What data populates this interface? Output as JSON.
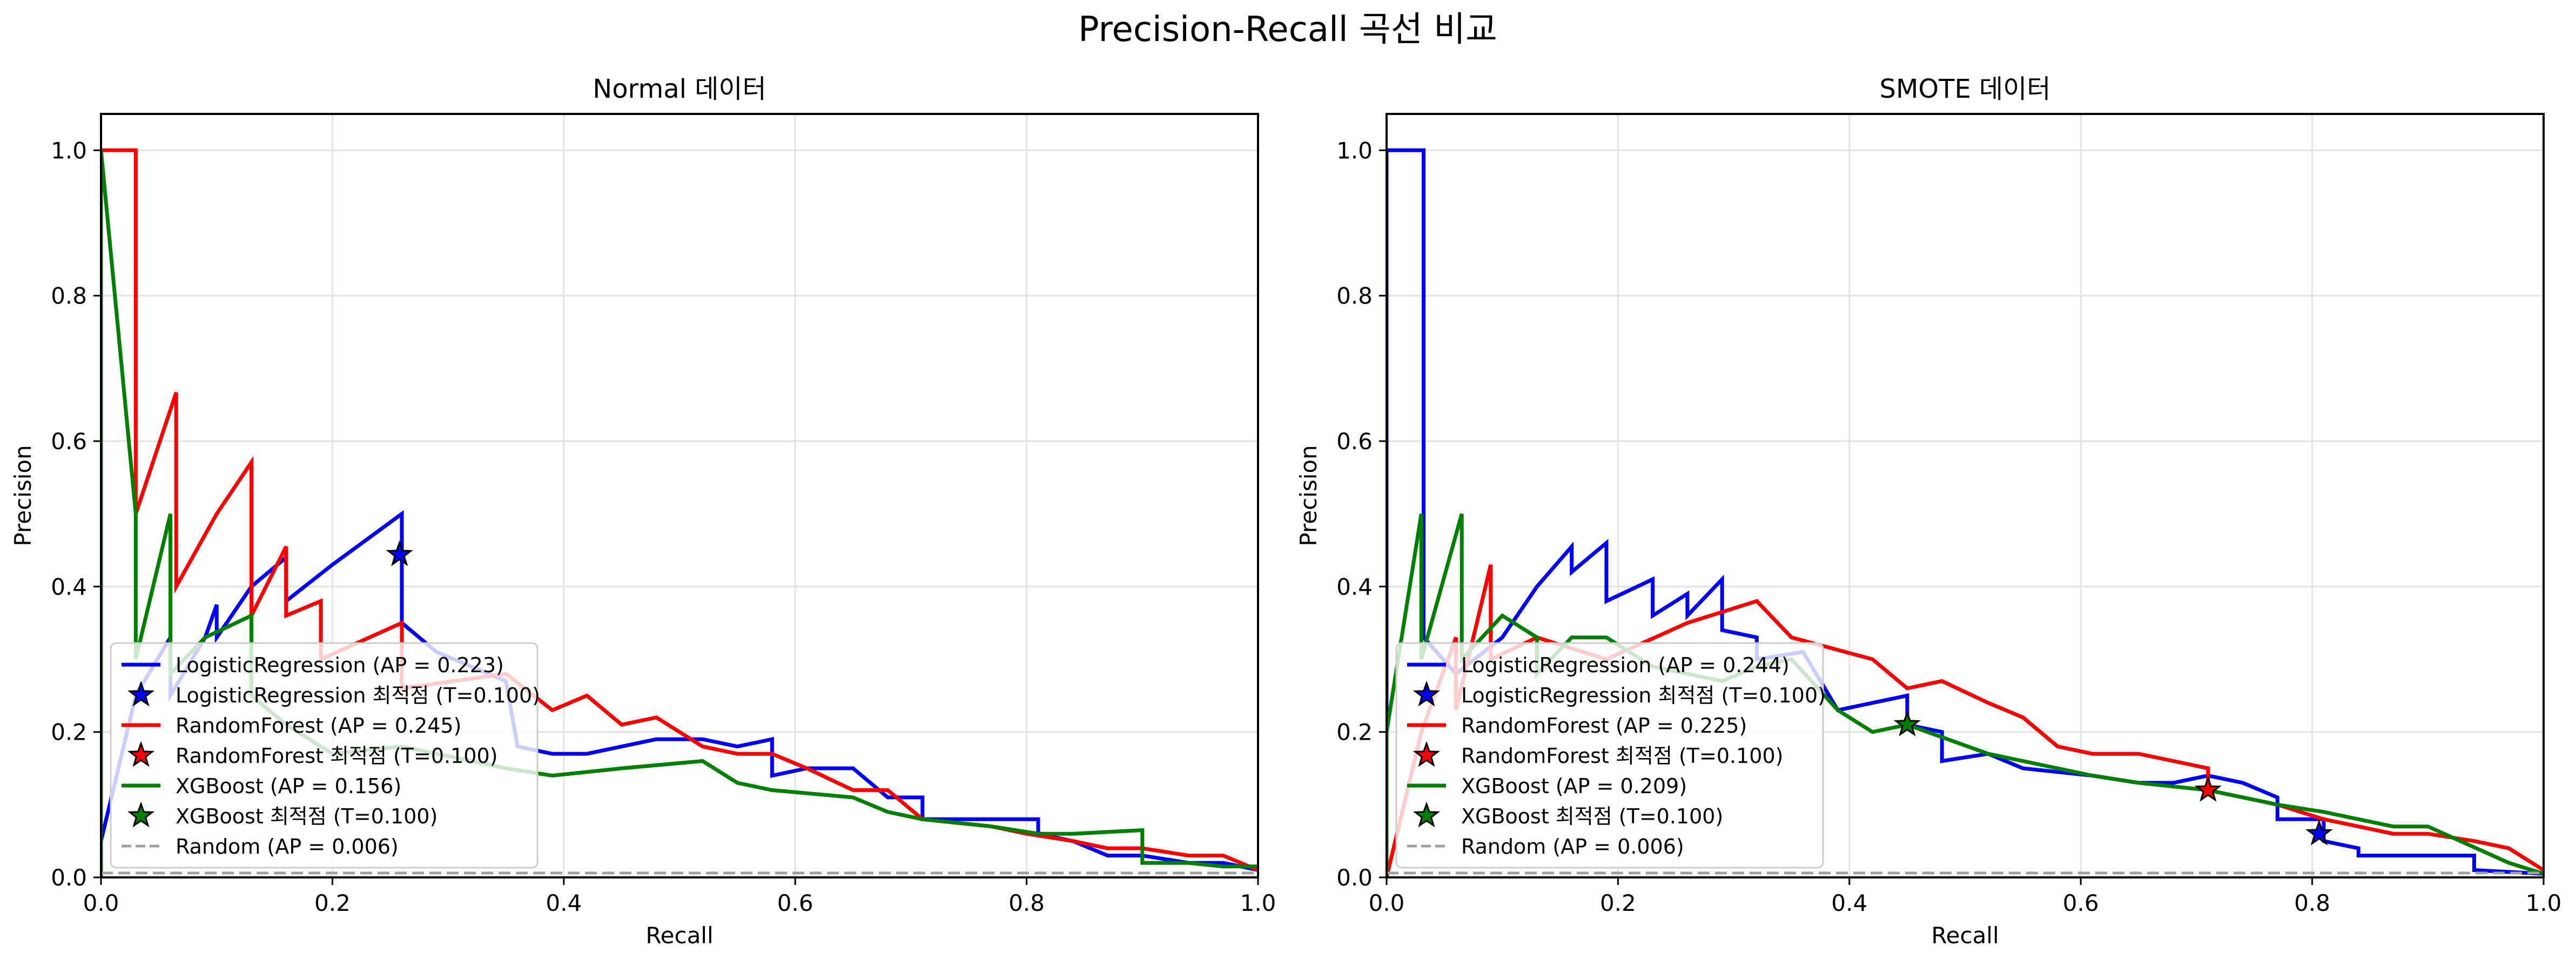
{
  "figure": {
    "title": "Precision-Recall 곡선 비교"
  },
  "chart_data": [
    {
      "type": "line",
      "title": "Normal 데이터",
      "xlabel": "Recall",
      "ylabel": "Precision",
      "xlim": [
        0,
        1
      ],
      "ylim": [
        0,
        1.05
      ],
      "xticks": [
        0.0,
        0.2,
        0.4,
        0.6,
        0.8,
        1.0
      ],
      "yticks": [
        0.0,
        0.2,
        0.4,
        0.6,
        0.8,
        1.0
      ],
      "grid": true,
      "legend_position": "lower left",
      "series": [
        {
          "name": "LogisticRegression (AP = 0.223)",
          "color": "#0000ff",
          "kind": "step",
          "points": [
            [
              0,
              1.0
            ],
            [
              0,
              0.05
            ],
            [
              0.03,
              0.25
            ],
            [
              0.06,
              0.33
            ],
            [
              0.06,
              0.25
            ],
            [
              0.09,
              0.33
            ],
            [
              0.1,
              0.375
            ],
            [
              0.1,
              0.33
            ],
            [
              0.13,
              0.4
            ],
            [
              0.16,
              0.44
            ],
            [
              0.16,
              0.38
            ],
            [
              0.2,
              0.43
            ],
            [
              0.26,
              0.5
            ],
            [
              0.26,
              0.35
            ],
            [
              0.29,
              0.31
            ],
            [
              0.32,
              0.29
            ],
            [
              0.35,
              0.27
            ],
            [
              0.36,
              0.18
            ],
            [
              0.39,
              0.17
            ],
            [
              0.42,
              0.17
            ],
            [
              0.45,
              0.18
            ],
            [
              0.48,
              0.19
            ],
            [
              0.52,
              0.19
            ],
            [
              0.55,
              0.18
            ],
            [
              0.58,
              0.19
            ],
            [
              0.58,
              0.14
            ],
            [
              0.61,
              0.15
            ],
            [
              0.65,
              0.15
            ],
            [
              0.68,
              0.11
            ],
            [
              0.71,
              0.11
            ],
            [
              0.71,
              0.08
            ],
            [
              0.77,
              0.08
            ],
            [
              0.81,
              0.08
            ],
            [
              0.81,
              0.06
            ],
            [
              0.84,
              0.05
            ],
            [
              0.87,
              0.03
            ],
            [
              0.9,
              0.03
            ],
            [
              0.94,
              0.02
            ],
            [
              0.97,
              0.02
            ],
            [
              1.0,
              0.01
            ]
          ]
        },
        {
          "name": "LogisticRegression 최적점 (T=0.100)",
          "color": "#0000ff",
          "kind": "marker",
          "points": [
            [
              0.258,
              0.444
            ]
          ]
        },
        {
          "name": "RandomForest (AP = 0.245)",
          "color": "#ff0000",
          "kind": "step",
          "points": [
            [
              0,
              1.0
            ],
            [
              0.03,
              1.0
            ],
            [
              0.03,
              0.5
            ],
            [
              0.065,
              0.667
            ],
            [
              0.065,
              0.4
            ],
            [
              0.1,
              0.5
            ],
            [
              0.13,
              0.571
            ],
            [
              0.13,
              0.36
            ],
            [
              0.16,
              0.455
            ],
            [
              0.16,
              0.36
            ],
            [
              0.19,
              0.38
            ],
            [
              0.19,
              0.3
            ],
            [
              0.26,
              0.35
            ],
            [
              0.26,
              0.26
            ],
            [
              0.35,
              0.28
            ],
            [
              0.39,
              0.23
            ],
            [
              0.42,
              0.25
            ],
            [
              0.45,
              0.21
            ],
            [
              0.48,
              0.22
            ],
            [
              0.52,
              0.18
            ],
            [
              0.55,
              0.17
            ],
            [
              0.58,
              0.17
            ],
            [
              0.61,
              0.15
            ],
            [
              0.65,
              0.12
            ],
            [
              0.68,
              0.12
            ],
            [
              0.71,
              0.08
            ],
            [
              0.77,
              0.07
            ],
            [
              0.8,
              0.06
            ],
            [
              0.84,
              0.05
            ],
            [
              0.87,
              0.04
            ],
            [
              0.9,
              0.04
            ],
            [
              0.94,
              0.03
            ],
            [
              0.97,
              0.03
            ],
            [
              1.0,
              0.01
            ]
          ]
        },
        {
          "name": "RandomForest 최적점 (T=0.100)",
          "color": "#ff0000",
          "kind": "marker",
          "points": []
        },
        {
          "name": "XGBoost (AP = 0.156)",
          "color": "#008000",
          "kind": "step",
          "points": [
            [
              0,
              0.0
            ],
            [
              0,
              1.0
            ],
            [
              0.03,
              0.5
            ],
            [
              0.03,
              0.3
            ],
            [
              0.06,
              0.5
            ],
            [
              0.06,
              0.28
            ],
            [
              0.09,
              0.33
            ],
            [
              0.13,
              0.36
            ],
            [
              0.13,
              0.25
            ],
            [
              0.16,
              0.21
            ],
            [
              0.2,
              0.17
            ],
            [
              0.26,
              0.18
            ],
            [
              0.35,
              0.15
            ],
            [
              0.39,
              0.14
            ],
            [
              0.45,
              0.15
            ],
            [
              0.52,
              0.16
            ],
            [
              0.55,
              0.13
            ],
            [
              0.58,
              0.12
            ],
            [
              0.65,
              0.11
            ],
            [
              0.68,
              0.09
            ],
            [
              0.71,
              0.08
            ],
            [
              0.77,
              0.07
            ],
            [
              0.81,
              0.06
            ],
            [
              0.84,
              0.06
            ],
            [
              0.9,
              0.065
            ],
            [
              0.9,
              0.02
            ],
            [
              0.94,
              0.02
            ],
            [
              0.97,
              0.015
            ],
            [
              1.0,
              0.015
            ]
          ]
        },
        {
          "name": "XGBoost 최적점 (T=0.100)",
          "color": "#008000",
          "kind": "marker",
          "points": []
        },
        {
          "name": "Random (AP = 0.006)",
          "color": "#a0a0a0",
          "kind": "dashed",
          "points": [
            [
              0,
              0.006
            ],
            [
              1,
              0.006
            ]
          ]
        }
      ]
    },
    {
      "type": "line",
      "title": "SMOTE 데이터",
      "xlabel": "Recall",
      "ylabel": "Precision",
      "xlim": [
        0,
        1
      ],
      "ylim": [
        0,
        1.05
      ],
      "xticks": [
        0.0,
        0.2,
        0.4,
        0.6,
        0.8,
        1.0
      ],
      "yticks": [
        0.0,
        0.2,
        0.4,
        0.6,
        0.8,
        1.0
      ],
      "grid": true,
      "legend_position": "lower left",
      "series": [
        {
          "name": "LogisticRegression (AP = 0.244)",
          "color": "#0000ff",
          "kind": "step",
          "points": [
            [
              0,
              0.0
            ],
            [
              0,
              1.0
            ],
            [
              0.032,
              1.0
            ],
            [
              0.032,
              0.33
            ],
            [
              0.06,
              0.28
            ],
            [
              0.1,
              0.33
            ],
            [
              0.13,
              0.4
            ],
            [
              0.16,
              0.455
            ],
            [
              0.16,
              0.42
            ],
            [
              0.19,
              0.46
            ],
            [
              0.19,
              0.38
            ],
            [
              0.23,
              0.41
            ],
            [
              0.23,
              0.36
            ],
            [
              0.26,
              0.39
            ],
            [
              0.26,
              0.36
            ],
            [
              0.29,
              0.41
            ],
            [
              0.29,
              0.34
            ],
            [
              0.32,
              0.33
            ],
            [
              0.32,
              0.3
            ],
            [
              0.36,
              0.31
            ],
            [
              0.39,
              0.23
            ],
            [
              0.42,
              0.24
            ],
            [
              0.45,
              0.25
            ],
            [
              0.45,
              0.21
            ],
            [
              0.48,
              0.2
            ],
            [
              0.48,
              0.16
            ],
            [
              0.52,
              0.17
            ],
            [
              0.55,
              0.15
            ],
            [
              0.61,
              0.14
            ],
            [
              0.65,
              0.13
            ],
            [
              0.68,
              0.13
            ],
            [
              0.71,
              0.14
            ],
            [
              0.74,
              0.13
            ],
            [
              0.77,
              0.11
            ],
            [
              0.77,
              0.08
            ],
            [
              0.81,
              0.08
            ],
            [
              0.81,
              0.05
            ],
            [
              0.84,
              0.04
            ],
            [
              0.84,
              0.03
            ],
            [
              0.9,
              0.03
            ],
            [
              0.94,
              0.03
            ],
            [
              0.94,
              0.01
            ],
            [
              1.0,
              0.005
            ]
          ]
        },
        {
          "name": "LogisticRegression 최적점 (T=0.100)",
          "color": "#0000ff",
          "kind": "marker",
          "points": [
            [
              0.806,
              0.06
            ]
          ]
        },
        {
          "name": "RandomForest (AP = 0.225)",
          "color": "#ff0000",
          "kind": "step",
          "points": [
            [
              0,
              0.0
            ],
            [
              0.03,
              0.2
            ],
            [
              0.06,
              0.33
            ],
            [
              0.06,
              0.23
            ],
            [
              0.09,
              0.43
            ],
            [
              0.09,
              0.3
            ],
            [
              0.13,
              0.33
            ],
            [
              0.19,
              0.3
            ],
            [
              0.26,
              0.35
            ],
            [
              0.32,
              0.38
            ],
            [
              0.35,
              0.33
            ],
            [
              0.42,
              0.3
            ],
            [
              0.45,
              0.26
            ],
            [
              0.48,
              0.27
            ],
            [
              0.52,
              0.24
            ],
            [
              0.55,
              0.22
            ],
            [
              0.58,
              0.18
            ],
            [
              0.61,
              0.17
            ],
            [
              0.65,
              0.17
            ],
            [
              0.68,
              0.16
            ],
            [
              0.71,
              0.15
            ],
            [
              0.71,
              0.12
            ],
            [
              0.77,
              0.1
            ],
            [
              0.81,
              0.08
            ],
            [
              0.84,
              0.07
            ],
            [
              0.87,
              0.06
            ],
            [
              0.9,
              0.06
            ],
            [
              0.94,
              0.05
            ],
            [
              0.97,
              0.04
            ],
            [
              1.0,
              0.01
            ]
          ]
        },
        {
          "name": "RandomForest 최적점 (T=0.100)",
          "color": "#ff0000",
          "kind": "marker",
          "points": [
            [
              0.71,
              0.12
            ]
          ]
        },
        {
          "name": "XGBoost (AP = 0.209)",
          "color": "#008000",
          "kind": "step",
          "points": [
            [
              0,
              0.0
            ],
            [
              0,
              0.2
            ],
            [
              0.03,
              0.5
            ],
            [
              0.03,
              0.3
            ],
            [
              0.065,
              0.5
            ],
            [
              0.065,
              0.3
            ],
            [
              0.1,
              0.36
            ],
            [
              0.13,
              0.33
            ],
            [
              0.13,
              0.28
            ],
            [
              0.16,
              0.33
            ],
            [
              0.19,
              0.33
            ],
            [
              0.23,
              0.29
            ],
            [
              0.29,
              0.27
            ],
            [
              0.32,
              0.29
            ],
            [
              0.35,
              0.3
            ],
            [
              0.39,
              0.23
            ],
            [
              0.42,
              0.2
            ],
            [
              0.45,
              0.21
            ],
            [
              0.52,
              0.17
            ],
            [
              0.58,
              0.15
            ],
            [
              0.61,
              0.14
            ],
            [
              0.65,
              0.13
            ],
            [
              0.71,
              0.12
            ],
            [
              0.77,
              0.1
            ],
            [
              0.81,
              0.09
            ],
            [
              0.84,
              0.08
            ],
            [
              0.87,
              0.07
            ],
            [
              0.9,
              0.07
            ],
            [
              0.97,
              0.02
            ],
            [
              1.0,
              0.005
            ]
          ]
        },
        {
          "name": "XGBoost 최적점 (T=0.100)",
          "color": "#008000",
          "kind": "marker",
          "points": [
            [
              0.45,
              0.21
            ]
          ]
        },
        {
          "name": "Random (AP = 0.006)",
          "color": "#a0a0a0",
          "kind": "dashed",
          "points": [
            [
              0,
              0.006
            ],
            [
              1,
              0.006
            ]
          ]
        }
      ]
    }
  ]
}
